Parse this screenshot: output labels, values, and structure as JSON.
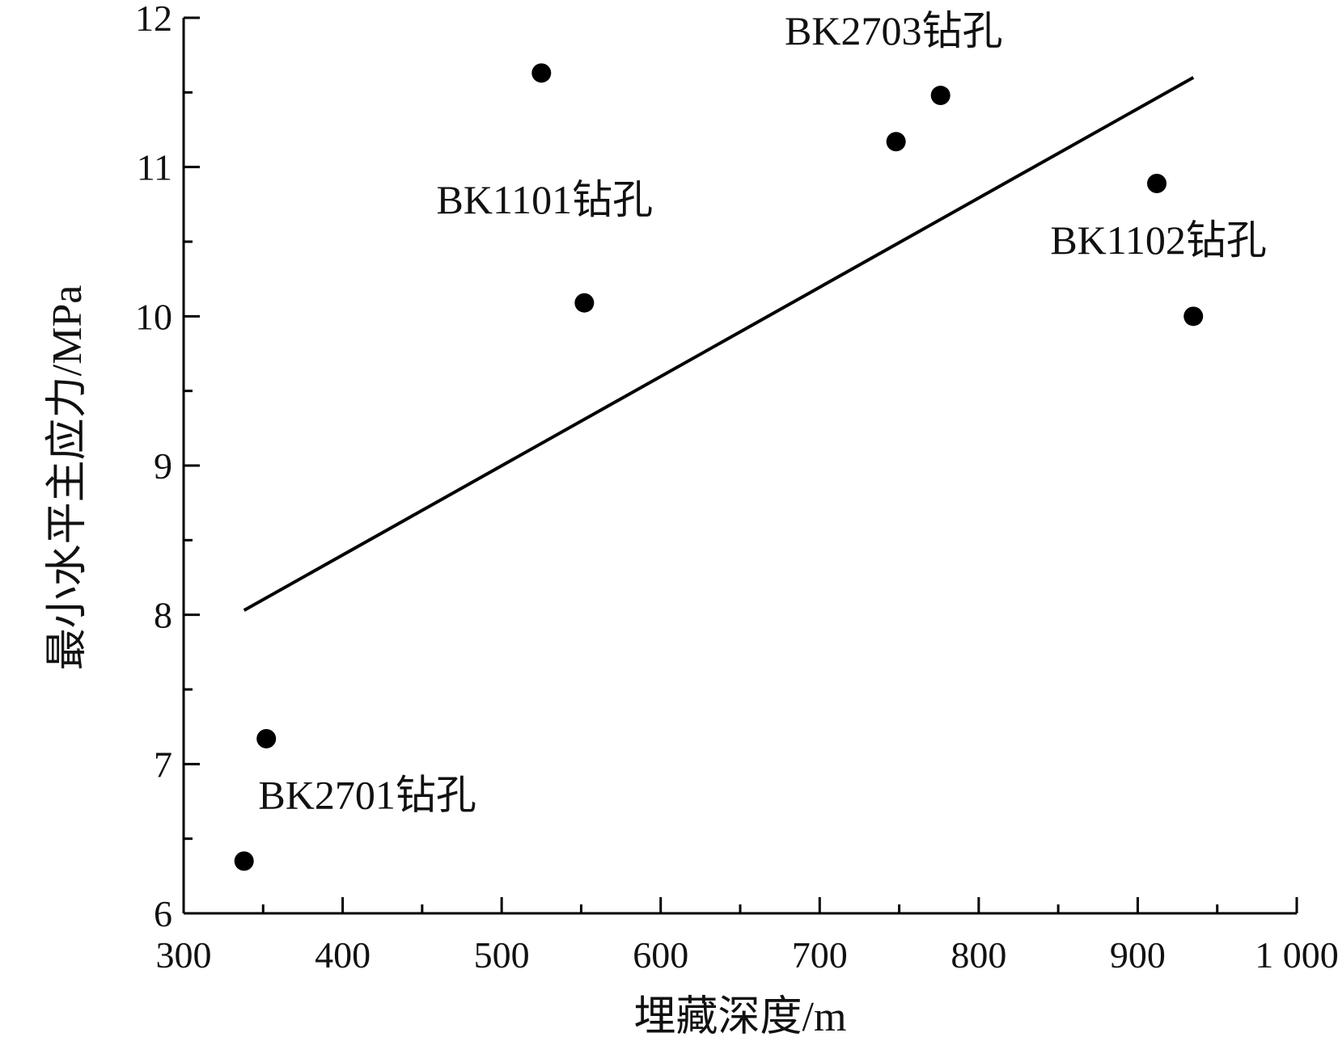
{
  "chart_data": {
    "type": "scatter",
    "title": "",
    "xlabel": "埋藏深度/m",
    "ylabel": "最小水平主应力/MPa",
    "xlim": [
      300,
      1000
    ],
    "ylim": [
      6,
      12
    ],
    "x_ticks": [
      300,
      400,
      500,
      600,
      700,
      800,
      900,
      1000
    ],
    "x_tick_labels": [
      "300",
      "400",
      "500",
      "600",
      "700",
      "800",
      "900",
      "1 000"
    ],
    "y_ticks": [
      6,
      7,
      8,
      9,
      10,
      11,
      12
    ],
    "y_tick_labels": [
      "6",
      "7",
      "8",
      "9",
      "10",
      "11",
      "12"
    ],
    "grid": false,
    "legend": "none",
    "series": [
      {
        "x": [
          338,
          352,
          525,
          552,
          748,
          776,
          912,
          935
        ],
        "y": [
          6.35,
          7.17,
          11.63,
          10.09,
          11.17,
          11.48,
          10.89,
          10.0
        ]
      }
    ],
    "trendline": {
      "x": [
        338,
        935
      ],
      "y": [
        8.03,
        11.6
      ]
    },
    "annotations": [
      {
        "text": "BK2703钻孔",
        "x": 678,
        "y": 11.82
      },
      {
        "text": "BK1101钻孔",
        "x": 459,
        "y": 10.69
      },
      {
        "text": "BK1102钻孔",
        "x": 845,
        "y": 10.42
      },
      {
        "text": "BK2701钻孔",
        "x": 347,
        "y": 6.7
      }
    ],
    "colors": {
      "marker": "#000000",
      "line": "#000000",
      "axis": "#000000"
    }
  }
}
